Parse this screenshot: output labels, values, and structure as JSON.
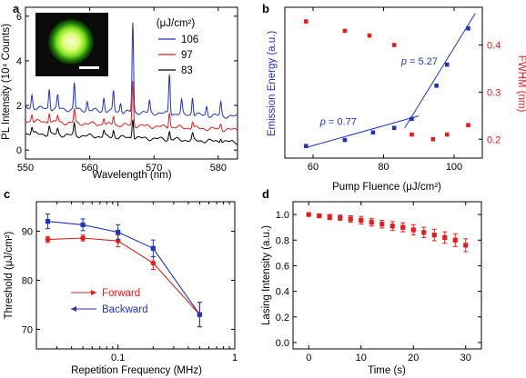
{
  "colors": {
    "blue": "#2233bb",
    "red": "#dd1f1f",
    "black": "#000000"
  },
  "chart_data": [
    {
      "id": "a",
      "panel_letter": "a",
      "type": "line",
      "xlabel": "Wavelength (nm)",
      "ylabel": "PL Intensity (10⁴ Counts)",
      "xlim": [
        550,
        583
      ],
      "ylim": [
        -0.4,
        6.4
      ],
      "xticks": [
        550,
        560,
        570,
        580
      ],
      "yticks": [
        0,
        2,
        4,
        6
      ],
      "legend_title": "(μJ/cm²)",
      "legend_position": "top-right",
      "inset": "microscope image of green emitting microsphere with scale bar",
      "series": [
        {
          "name": "106",
          "color": "#2233bb",
          "baseline": 1.9,
          "peaks": [
            [
              551.0,
              0.6
            ],
            [
              553.7,
              0.9
            ],
            [
              555.0,
              0.6
            ],
            [
              557.6,
              1.2
            ],
            [
              559.6,
              0.4
            ],
            [
              562.2,
              0.6
            ],
            [
              563.7,
              0.9
            ],
            [
              564.8,
              0.4
            ],
            [
              566.7,
              4.0
            ],
            [
              569.3,
              0.5
            ],
            [
              572.4,
              1.8
            ],
            [
              574.3,
              0.6
            ],
            [
              576.0,
              0.8
            ],
            [
              578.2,
              0.4
            ],
            [
              580.4,
              0.6
            ]
          ]
        },
        {
          "name": "97",
          "color": "#dd1f1f",
          "baseline": 1.3,
          "peaks": [
            [
              551.0,
              0.35
            ],
            [
              553.7,
              0.45
            ],
            [
              555.0,
              0.3
            ],
            [
              557.6,
              0.6
            ],
            [
              562.2,
              0.3
            ],
            [
              563.7,
              0.4
            ],
            [
              566.7,
              2.0
            ],
            [
              572.4,
              0.7
            ],
            [
              576.0,
              0.3
            ],
            [
              580.4,
              0.25
            ]
          ]
        },
        {
          "name": "83",
          "color": "#000000",
          "baseline": 0.75,
          "peaks": [
            [
              551.0,
              0.3
            ],
            [
              553.7,
              0.35
            ],
            [
              555.0,
              0.25
            ],
            [
              557.6,
              0.5
            ],
            [
              562.2,
              0.25
            ],
            [
              563.7,
              0.3
            ],
            [
              566.7,
              0.9
            ],
            [
              572.4,
              0.35
            ],
            [
              576.0,
              0.25
            ],
            [
              580.4,
              0.2
            ]
          ]
        }
      ]
    },
    {
      "id": "b",
      "panel_letter": "b",
      "type": "scatter",
      "xlabel": "Pump Fluence (μJ/cm²)",
      "ylabel": "Emission Energy (a.u.)",
      "y2label": "FWHM (nm)",
      "xlim": [
        52,
        108
      ],
      "xticks": [
        60,
        80,
        100
      ],
      "ylim": [
        0,
        1
      ],
      "y2lim": [
        0.16,
        0.48
      ],
      "y2ticks": [
        0.2,
        0.3,
        0.4
      ],
      "series": [
        {
          "name": "Emission Energy",
          "axis": "left",
          "color": "#2233bb",
          "x": [
            58,
            69,
            77,
            83,
            88,
            95,
            98,
            104
          ],
          "y": [
            0.08,
            0.12,
            0.17,
            0.2,
            0.26,
            0.48,
            0.62,
            0.86
          ]
        },
        {
          "name": "FWHM",
          "axis": "right",
          "color": "#dd1f1f",
          "x": [
            58,
            69,
            76,
            83,
            88,
            94,
            98,
            104
          ],
          "y": [
            0.45,
            0.43,
            0.42,
            0.4,
            0.21,
            0.2,
            0.21,
            0.23
          ]
        }
      ],
      "fits": [
        {
          "label_prefix": "p",
          "label_value": " = 0.77",
          "x": [
            58,
            90
          ],
          "y": [
            0.07,
            0.28
          ],
          "label_at": [
            62,
            0.22
          ]
        },
        {
          "label_prefix": "p",
          "label_value": " = 5.27",
          "x": [
            86,
            106
          ],
          "y": [
            0.2,
            0.96
          ],
          "label_at": [
            85,
            0.62
          ]
        }
      ]
    },
    {
      "id": "c",
      "panel_letter": "c",
      "type": "line",
      "xlabel": "Repetition Frequency (MHz)",
      "ylabel": "Threshold (μJ/cm²)",
      "xscale": "log",
      "xlim": [
        0.02,
        1
      ],
      "xticks": [
        0.1,
        1
      ],
      "ylim": [
        66,
        96
      ],
      "yticks": [
        70,
        80,
        90
      ],
      "legend_position": "lower-left",
      "series": [
        {
          "name": "Forward",
          "color": "#dd1f1f",
          "arrow": "right",
          "x": [
            0.025,
            0.05,
            0.1,
            0.2,
            0.5
          ],
          "y": [
            88.3,
            88.6,
            88.0,
            83.5,
            73.0
          ],
          "err": [
            0.6,
            0.6,
            1.2,
            1.3,
            2.5
          ]
        },
        {
          "name": "Backward",
          "color": "#2233bb",
          "arrow": "left",
          "x": [
            0.025,
            0.05,
            0.1,
            0.2,
            0.5
          ],
          "y": [
            92.0,
            91.3,
            89.8,
            86.5,
            73.0
          ],
          "err": [
            1.5,
            1.2,
            1.5,
            1.7,
            2.5
          ]
        }
      ]
    },
    {
      "id": "d",
      "panel_letter": "d",
      "type": "scatter",
      "xlabel": "Time (s)",
      "ylabel": "Lasing Intensity (a.u.)",
      "xlim": [
        -3,
        33
      ],
      "xticks": [
        0,
        10,
        20,
        30
      ],
      "ylim": [
        -0.05,
        1.1
      ],
      "yticks": [
        0.0,
        0.2,
        0.4,
        0.6,
        0.8,
        1.0
      ],
      "series": [
        {
          "name": "",
          "color": "#dd1f1f",
          "x": [
            0,
            2,
            4,
            6,
            8,
            10,
            12,
            14,
            16,
            18,
            20,
            22,
            24,
            26,
            28,
            30
          ],
          "y": [
            1.0,
            0.99,
            0.98,
            0.975,
            0.965,
            0.955,
            0.94,
            0.925,
            0.91,
            0.9,
            0.88,
            0.86,
            0.84,
            0.82,
            0.8,
            0.76
          ],
          "err": [
            0.01,
            0.015,
            0.02,
            0.02,
            0.025,
            0.03,
            0.03,
            0.03,
            0.035,
            0.035,
            0.04,
            0.04,
            0.045,
            0.045,
            0.05,
            0.05
          ]
        }
      ]
    }
  ]
}
